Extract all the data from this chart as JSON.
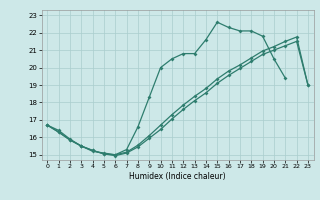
{
  "xlabel": "Humidex (Indice chaleur)",
  "bg_color": "#cde8e8",
  "line_color": "#2e7d6e",
  "grid_color": "#aacece",
  "xlim": [
    -0.5,
    23.5
  ],
  "ylim": [
    14.7,
    23.3
  ],
  "curve1_x": [
    0,
    1,
    2,
    3,
    4,
    5,
    6,
    7,
    8,
    9,
    10,
    11,
    12,
    13,
    14,
    15,
    16,
    17,
    18,
    19,
    20,
    21
  ],
  "curve1_y": [
    16.7,
    16.4,
    15.9,
    15.5,
    15.2,
    15.1,
    15.0,
    15.3,
    16.6,
    18.3,
    20.0,
    20.5,
    20.8,
    20.8,
    21.6,
    22.6,
    22.3,
    22.1,
    22.1,
    21.8,
    20.5,
    19.4
  ],
  "curve2_x": [
    0,
    1,
    2,
    3,
    4,
    5,
    6,
    7,
    8,
    9,
    10,
    11,
    12,
    13,
    14,
    15,
    16,
    17,
    18,
    19,
    20,
    21,
    22,
    23
  ],
  "curve2_y": [
    16.7,
    16.3,
    15.85,
    15.5,
    15.25,
    15.05,
    15.0,
    15.15,
    15.55,
    16.1,
    16.7,
    17.3,
    17.85,
    18.35,
    18.8,
    19.35,
    19.8,
    20.15,
    20.55,
    20.95,
    21.2,
    21.5,
    21.75,
    19.0
  ],
  "curve3_x": [
    0,
    1,
    2,
    3,
    4,
    5,
    6,
    7,
    8,
    9,
    10,
    11,
    12,
    13,
    14,
    15,
    16,
    17,
    18,
    19,
    20,
    21,
    22,
    23
  ],
  "curve3_y": [
    16.7,
    16.3,
    15.85,
    15.5,
    15.25,
    15.05,
    14.95,
    15.1,
    15.45,
    15.95,
    16.45,
    17.05,
    17.6,
    18.1,
    18.55,
    19.1,
    19.55,
    19.95,
    20.35,
    20.75,
    21.0,
    21.25,
    21.5,
    19.0
  ],
  "xticks": [
    0,
    1,
    2,
    3,
    4,
    5,
    6,
    7,
    8,
    9,
    10,
    11,
    12,
    13,
    14,
    15,
    16,
    17,
    18,
    19,
    20,
    21,
    22,
    23
  ],
  "yticks": [
    15,
    16,
    17,
    18,
    19,
    20,
    21,
    22,
    23
  ]
}
